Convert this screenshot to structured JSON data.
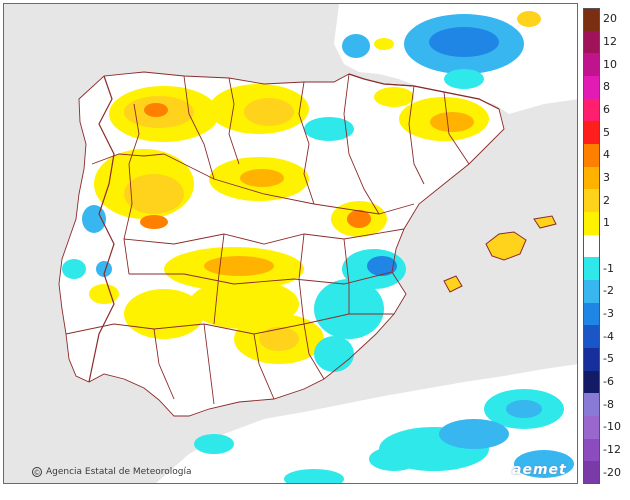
{
  "map": {
    "credit": "Agencia Estatal de Meteorología",
    "credit_symbol": "©",
    "brand": "aemet",
    "colors": {
      "land": "#ffffff",
      "sea": "#e6e6e6",
      "border": "#8b2a2a"
    }
  },
  "legend": {
    "classes": [
      {
        "label": "20",
        "color": "#7a2f12"
      },
      {
        "label": "12",
        "color": "#a0135a"
      },
      {
        "label": "10",
        "color": "#c0148c"
      },
      {
        "label": "8",
        "color": "#e21bb4"
      },
      {
        "label": "6",
        "color": "#ff1f6e"
      },
      {
        "label": "5",
        "color": "#ff1e1e"
      },
      {
        "label": "4",
        "color": "#ff7f00"
      },
      {
        "label": "3",
        "color": "#ffb300"
      },
      {
        "label": "2",
        "color": "#ffd21c"
      },
      {
        "label": "1",
        "color": "#fff200"
      },
      {
        "label": "",
        "color": "#ffffff"
      },
      {
        "label": "-1",
        "color": "#2ee8ea"
      },
      {
        "label": "-2",
        "color": "#38b6f0"
      },
      {
        "label": "-3",
        "color": "#1f86e6"
      },
      {
        "label": "-4",
        "color": "#1b56c9"
      },
      {
        "label": "-5",
        "color": "#172f9b"
      },
      {
        "label": "-6",
        "color": "#131a66"
      },
      {
        "label": "-8",
        "color": "#8a7ad8"
      },
      {
        "label": "-10",
        "color": "#9a67cf"
      },
      {
        "label": "-12",
        "color": "#8c4cbf"
      },
      {
        "label": "-20",
        "color": "#7a3aa8"
      }
    ]
  }
}
